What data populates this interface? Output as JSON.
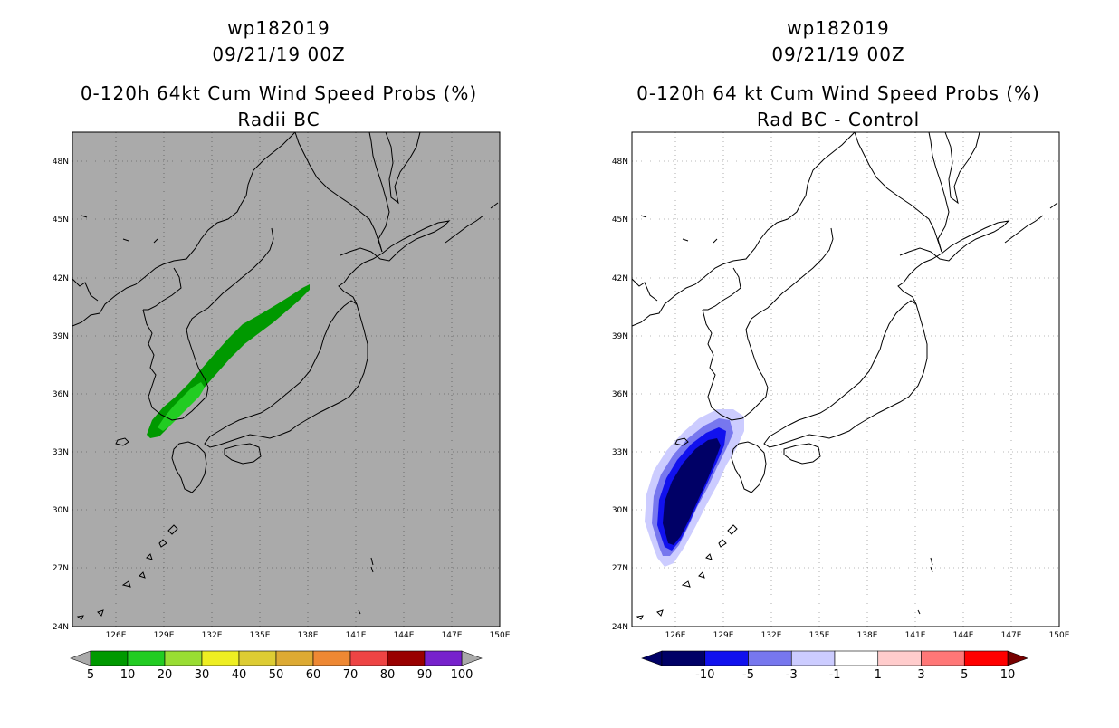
{
  "panels": [
    {
      "id": "left",
      "storm": "wp182019",
      "datetime": "09/21/19 00Z",
      "title": "0-120h 64kt Cum Wind Speed Probs (%)",
      "subtitle": "Radii BC",
      "background": "#aaaaaa",
      "lat_labels": [
        "48N",
        "45N",
        "42N",
        "39N",
        "36N",
        "33N",
        "30N",
        "27N",
        "24N"
      ],
      "lon_labels": [
        "126E",
        "129E",
        "132E",
        "135E",
        "138E",
        "141E",
        "144E",
        "147E",
        "150E"
      ],
      "colorbar": {
        "colors": [
          "#009900",
          "#22cc22",
          "#99dd33",
          "#eeee22",
          "#ddcc33",
          "#ddaa33",
          "#ee8833",
          "#ee4444",
          "#990000",
          "#7722cc"
        ],
        "under": "#aaaaaa",
        "over": "#aaaaaa",
        "labels": [
          "5",
          "10",
          "20",
          "30",
          "40",
          "50",
          "60",
          "70",
          "80",
          "90",
          "100"
        ]
      },
      "shading": [
        {
          "level": "5",
          "color": "#009900"
        },
        {
          "level": "10",
          "color": "#22cc22"
        }
      ]
    },
    {
      "id": "right",
      "storm": "wp182019",
      "datetime": "09/21/19 00Z",
      "title": "0-120h 64 kt Cum Wind Speed Probs (%)",
      "subtitle": "Rad BC - Control",
      "background": "#ffffff",
      "lat_labels": [
        "48N",
        "45N",
        "42N",
        "39N",
        "36N",
        "33N",
        "30N",
        "27N",
        "24N"
      ],
      "lon_labels": [
        "126E",
        "129E",
        "132E",
        "135E",
        "138E",
        "141E",
        "144E",
        "147E",
        "150E"
      ],
      "colorbar": {
        "colors": [
          "#000066",
          "#1111ee",
          "#7777ee",
          "#ccccff",
          "#ffffff",
          "#ffcccc",
          "#ff7777",
          "#ff0000"
        ],
        "under": "#000066",
        "over": "#770000",
        "labels": [
          "-10",
          "-5",
          "-3",
          "-1",
          "1",
          "3",
          "5",
          "10"
        ]
      },
      "shading": [
        {
          "level": "-1",
          "color": "#ccccff"
        },
        {
          "level": "-3",
          "color": "#7777ee"
        },
        {
          "level": "-5",
          "color": "#1111ee"
        },
        {
          "level": "-10",
          "color": "#000066"
        }
      ]
    }
  ]
}
